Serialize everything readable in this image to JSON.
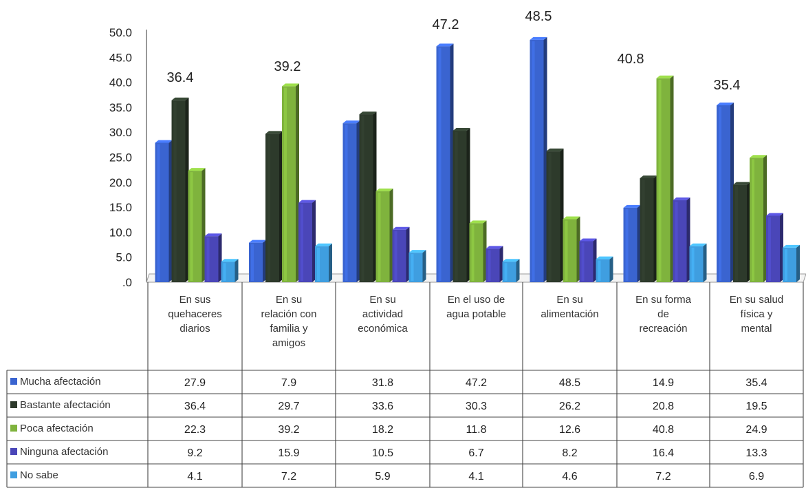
{
  "chart_data": {
    "type": "bar",
    "categories": [
      [
        "En sus",
        "quehaceres",
        "diarios"
      ],
      [
        "En su",
        "relación con",
        "familia y",
        "amigos"
      ],
      [
        "En su",
        "actividad",
        "económica"
      ],
      [
        "En el uso de",
        "agua potable"
      ],
      [
        "En su",
        "alimentación"
      ],
      [
        "En su forma",
        "de",
        "recreación"
      ],
      [
        "En su salud",
        "física y",
        "mental"
      ]
    ],
    "series": [
      {
        "name": "Mucha afectación",
        "color": "#3a64d0",
        "values": [
          27.9,
          7.9,
          31.8,
          47.2,
          48.5,
          14.9,
          35.4
        ]
      },
      {
        "name": "Bastante afectación",
        "color": "#2d3a2b",
        "values": [
          36.4,
          29.7,
          33.6,
          30.3,
          26.2,
          20.8,
          19.5
        ]
      },
      {
        "name": "Poca afectación",
        "color": "#7fb33d",
        "values": [
          22.3,
          39.2,
          18.2,
          11.8,
          12.6,
          40.8,
          24.9
        ]
      },
      {
        "name": "Ninguna afectación",
        "color": "#4a46b8",
        "values": [
          9.2,
          15.9,
          10.5,
          6.7,
          8.2,
          16.4,
          13.3
        ]
      },
      {
        "name": "No sabe",
        "color": "#3f9ee0",
        "values": [
          4.1,
          7.2,
          5.9,
          4.1,
          4.6,
          7.2,
          6.9
        ]
      }
    ],
    "data_labels": [
      "36.4",
      "39.2",
      "",
      "47.2",
      "48.5",
      "40.8",
      "35.4"
    ],
    "y_ticks": [
      "50.0",
      "45.0",
      "40.0",
      "35.0",
      "30.0",
      "25.0",
      "20.0",
      "15.0",
      "10.0",
      "5.0",
      ".0"
    ],
    "ylim": [
      0,
      50
    ],
    "grid": false,
    "legend": "data-table"
  }
}
